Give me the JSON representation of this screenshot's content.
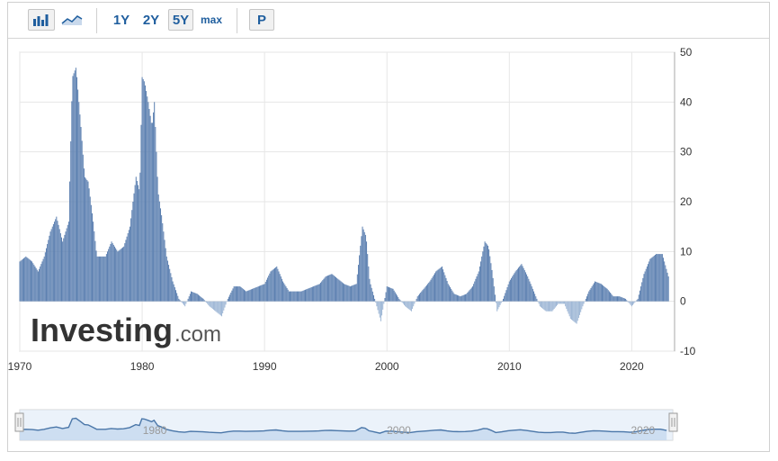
{
  "toolbar": {
    "chart_type_icons": [
      "bar-chart-icon",
      "area-chart-icon"
    ],
    "ranges": [
      "1Y",
      "2Y",
      "5Y",
      "max"
    ],
    "active_range": "5Y",
    "p_label": "P"
  },
  "logo": {
    "brand": "Investing",
    "suffix": ".com"
  },
  "colors": {
    "positive_bar": "#5b7fb0",
    "negative_bar": "#9db6d5",
    "navigator_line": "#4a76a8",
    "navigator_fill": "#dbe7f5",
    "grid": "#e6e6e6"
  },
  "chart_data": {
    "type": "bar",
    "title": "",
    "xlabel": "",
    "ylabel": "",
    "xlim": [
      1970,
      2023.5
    ],
    "ylim": [
      -10,
      50
    ],
    "yticks": [
      -10,
      0,
      10,
      20,
      30,
      40,
      50
    ],
    "xticks": [
      1970,
      1980,
      1990,
      2000,
      2010,
      2020
    ],
    "yaxis_side": "right",
    "grid": true,
    "x": [
      1970.0,
      1970.5,
      1971.0,
      1971.5,
      1972.0,
      1972.5,
      1973.0,
      1973.5,
      1974.0,
      1974.3,
      1974.6,
      1975.0,
      1975.3,
      1975.6,
      1976.0,
      1976.3,
      1976.6,
      1977.0,
      1977.5,
      1978.0,
      1978.5,
      1979.0,
      1979.5,
      1979.8,
      1980.0,
      1980.2,
      1980.5,
      1980.8,
      1981.0,
      1981.3,
      1981.6,
      1982.0,
      1982.5,
      1983.0,
      1983.5,
      1984.0,
      1984.5,
      1985.0,
      1985.5,
      1986.0,
      1986.5,
      1987.0,
      1987.5,
      1988.0,
      1988.5,
      1989.0,
      1989.5,
      1990.0,
      1990.5,
      1991.0,
      1991.5,
      1992.0,
      1992.5,
      1993.0,
      1993.5,
      1994.0,
      1994.5,
      1995.0,
      1995.5,
      1996.0,
      1996.5,
      1997.0,
      1997.5,
      1998.0,
      1998.3,
      1998.6,
      1999.0,
      1999.5,
      2000.0,
      2000.5,
      2001.0,
      2001.5,
      2002.0,
      2002.5,
      2003.0,
      2003.5,
      2004.0,
      2004.5,
      2005.0,
      2005.5,
      2006.0,
      2006.5,
      2007.0,
      2007.5,
      2008.0,
      2008.3,
      2008.6,
      2009.0,
      2009.5,
      2010.0,
      2010.5,
      2011.0,
      2011.5,
      2012.0,
      2012.5,
      2013.0,
      2013.5,
      2014.0,
      2014.5,
      2015.0,
      2015.5,
      2016.0,
      2016.5,
      2017.0,
      2017.5,
      2018.0,
      2018.5,
      2019.0,
      2019.5,
      2020.0,
      2020.5,
      2021.0,
      2021.5,
      2022.0,
      2022.5,
      2023.0
    ],
    "values": [
      8,
      9,
      8,
      6,
      9,
      14,
      17,
      12,
      16,
      45,
      47,
      35,
      25,
      24,
      16,
      9,
      9,
      9,
      12,
      10,
      11,
      15,
      25,
      22,
      45,
      44,
      40,
      35,
      40,
      22,
      17,
      9,
      4,
      0.5,
      -1,
      2,
      1.5,
      0.5,
      -1,
      -2,
      -3,
      0.5,
      3,
      3,
      2,
      2.5,
      3,
      3.5,
      6,
      7,
      4,
      2,
      2,
      2,
      2.5,
      3,
      3.5,
      5,
      5.5,
      4.5,
      3.5,
      3,
      3.5,
      15,
      13,
      4,
      0.5,
      -4,
      3,
      2.5,
      0.5,
      -1,
      -2,
      1,
      2.5,
      4,
      6,
      7,
      3.5,
      1.5,
      1,
      1.5,
      3,
      6,
      12,
      11,
      6,
      -2,
      0.5,
      4,
      6,
      7.5,
      5,
      2,
      -1,
      -2,
      -2,
      -0.5,
      -0.5,
      -3.5,
      -4.5,
      -1,
      2,
      4,
      3.5,
      2.5,
      1,
      1,
      0.5,
      -1,
      0.5,
      5.5,
      8.5,
      9.5,
      9.5,
      5
    ],
    "navigator": {
      "labels": [
        "1980",
        "2000",
        "2020"
      ],
      "label_years": [
        1980,
        2000,
        2020
      ]
    }
  }
}
